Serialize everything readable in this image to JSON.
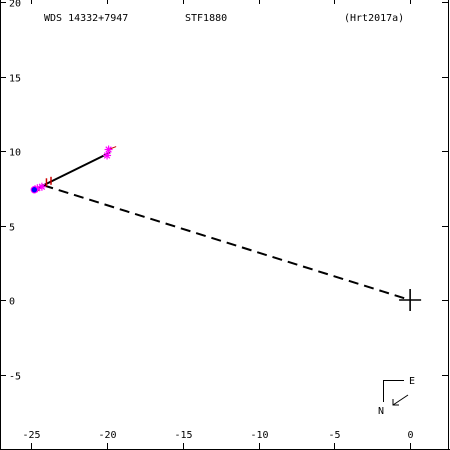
{
  "header": {
    "left": "WDS 14332+7947",
    "center": "STF1880",
    "right": "(Hrt2017a)"
  },
  "compass": {
    "east_label": "E",
    "north_label": "N"
  },
  "chart_data": {
    "type": "scatter",
    "title": "",
    "xlabel": "",
    "ylabel": "",
    "xlim": [
      -27,
      2.5
    ],
    "ylim": [
      -10,
      20
    ],
    "x_ticks": [
      -25,
      -20,
      -15,
      -10,
      -5,
      0
    ],
    "x_tick_labels": [
      "-25",
      "-20",
      "-15",
      "-10",
      "-5",
      "0"
    ],
    "y_ticks": [
      20,
      15,
      10,
      5,
      0,
      -5
    ],
    "y_tick_labels": [
      "20",
      "15",
      "10",
      "5",
      "0",
      "-5"
    ],
    "grid": false,
    "colors": {
      "axis": "#000000",
      "observations": "#ff00ff",
      "residuals": "#cc0000",
      "predicted": "#0000ff",
      "path": "#000000"
    },
    "primary": {
      "x": 0,
      "y": 0,
      "marker": "plus"
    },
    "orbit_segment": [
      [
        -24.8,
        7.4
      ],
      [
        -19.8,
        9.9
      ]
    ],
    "observations": [
      [
        -19.9,
        10.1
      ],
      [
        -20.0,
        9.7
      ],
      [
        -24.3,
        7.6
      ],
      [
        -24.6,
        7.5
      ]
    ],
    "residual_segments": [
      [
        [
          -19.9,
          10.1
        ],
        [
          -19.4,
          10.3
        ]
      ],
      [
        [
          -24.3,
          7.6
        ],
        [
          -24.6,
          7.3
        ]
      ]
    ],
    "predicted_position": {
      "x": -24.8,
      "y": 7.4
    },
    "red_ticks": [
      [
        -24.0,
        7.9
      ],
      [
        -23.7,
        8.0
      ]
    ],
    "connector": {
      "from": [
        -24.2,
        7.7
      ],
      "to": [
        0,
        0
      ],
      "style": "dashed"
    }
  }
}
